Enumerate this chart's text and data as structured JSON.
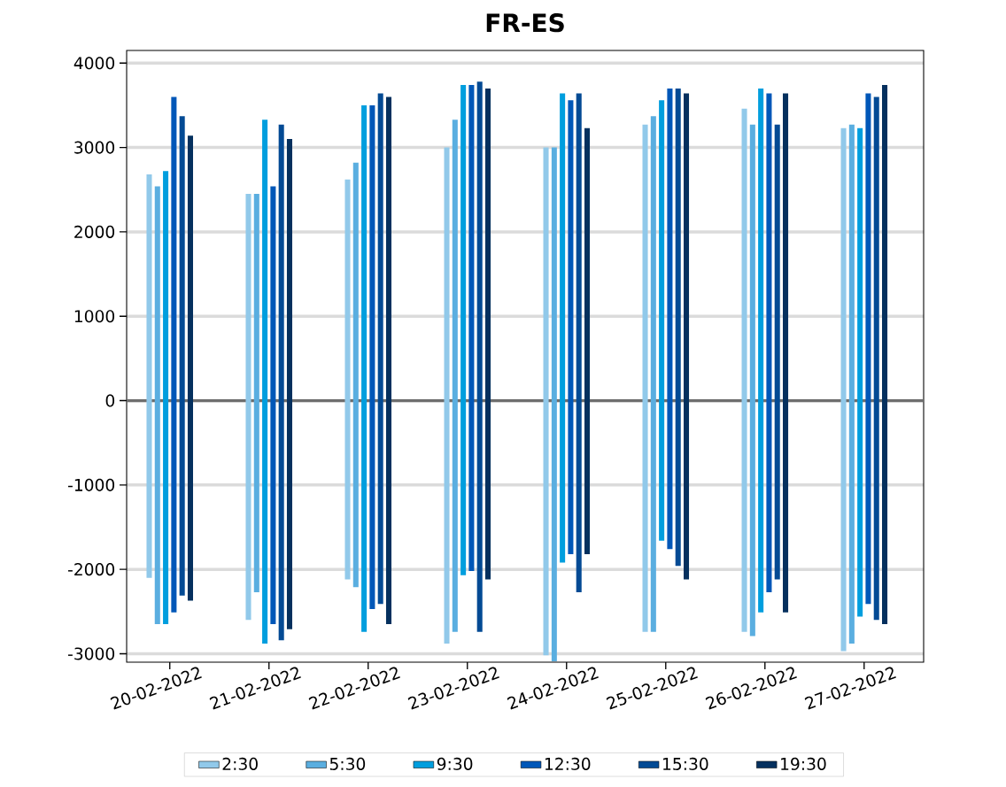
{
  "chart_data": {
    "type": "bar",
    "title": "FR-ES",
    "categories": [
      "20-02-2022",
      "21-02-2022",
      "22-02-2022",
      "23-02-2022",
      "24-02-2022",
      "25-02-2022",
      "26-02-2022",
      "27-02-2022"
    ],
    "series": [
      {
        "name": "2:30",
        "color": "#91c9ea",
        "base": [
          -2100,
          -2600,
          -2120,
          -2880,
          -3020,
          -2740,
          -2740,
          -2970
        ],
        "values": [
          4780,
          5050,
          4740,
          5880,
          6020,
          6010,
          6200,
          6200
        ]
      },
      {
        "name": "5:30",
        "color": "#5aaee0",
        "base": [
          -2650,
          -2270,
          -2210,
          -2740,
          -3090,
          -2740,
          -2790,
          -2880
        ],
        "values": [
          5190,
          4720,
          5030,
          6070,
          6090,
          6110,
          6060,
          6150
        ]
      },
      {
        "name": "9:30",
        "color": "#009ede",
        "base": [
          -2650,
          -2880,
          -2740,
          -2070,
          -1920,
          -1660,
          -2510,
          -2560
        ],
        "values": [
          5370,
          6210,
          6240,
          5810,
          5560,
          5220,
          6210,
          5790
        ]
      },
      {
        "name": "12:30",
        "color": "#0057b8",
        "base": [
          -2510,
          -2650,
          -2470,
          -2020,
          -1820,
          -1760,
          -2270,
          -2410
        ],
        "values": [
          6110,
          5190,
          5970,
          5760,
          5380,
          5460,
          5910,
          6050
        ]
      },
      {
        "name": "15:30",
        "color": "#034a94",
        "base": [
          -2310,
          -2840,
          -2410,
          -2740,
          -2270,
          -1960,
          -2120,
          -2600
        ],
        "values": [
          5680,
          6110,
          6050,
          6520,
          5910,
          5660,
          5390,
          6200
        ]
      },
      {
        "name": "19:30",
        "color": "#05305e",
        "base": [
          -2370,
          -2710,
          -2650,
          -2120,
          -1820,
          -2120,
          -2510,
          -2650
        ],
        "values": [
          5510,
          5810,
          6250,
          5820,
          5050,
          5760,
          6150,
          6390
        ]
      }
    ],
    "ylim": [
      -3100,
      4150
    ],
    "yticks": [
      -3000,
      -2000,
      -1000,
      0,
      1000,
      2000,
      3000,
      4000
    ],
    "ref_lines": [
      {
        "axis": "y",
        "value": 0,
        "color": "#6e6e6e"
      }
    ],
    "grid": "y",
    "legend": "bottom"
  }
}
